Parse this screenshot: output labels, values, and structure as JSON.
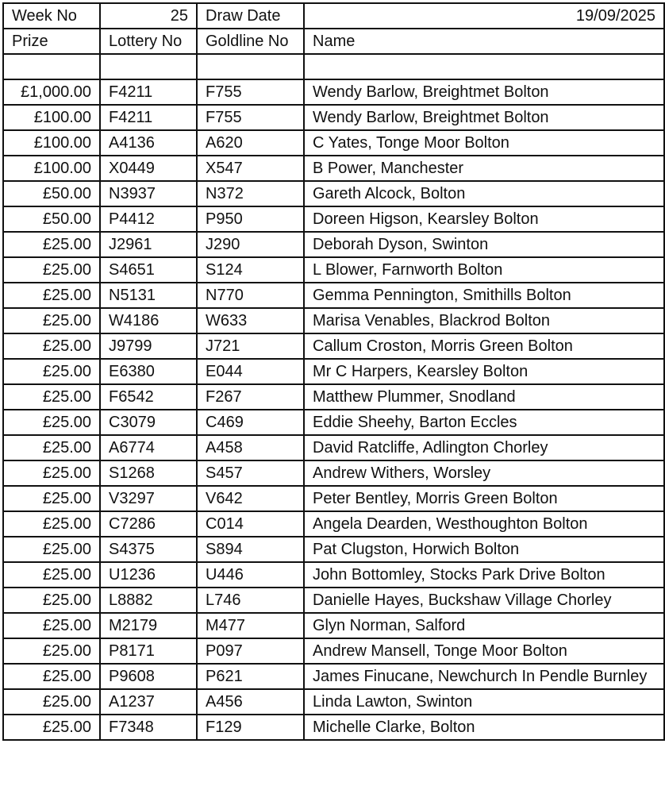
{
  "header": {
    "week_label": "Week No",
    "week_value": "25",
    "draw_date_label": "Draw Date",
    "draw_date_value": "19/09/2025"
  },
  "columns": {
    "prize": "Prize",
    "lottery_no": "Lottery No",
    "goldline_no": "Goldline No",
    "name": "Name"
  },
  "rows": [
    {
      "prize": "£1,000.00",
      "lottery": "F4211",
      "goldline": "F755",
      "name": "Wendy Barlow, Breightmet Bolton"
    },
    {
      "prize": "£100.00",
      "lottery": "F4211",
      "goldline": "F755",
      "name": "Wendy Barlow, Breightmet Bolton"
    },
    {
      "prize": "£100.00",
      "lottery": "A4136",
      "goldline": "A620",
      "name": "C Yates, Tonge Moor Bolton"
    },
    {
      "prize": "£100.00",
      "lottery": "X0449",
      "goldline": "X547",
      "name": "B Power, Manchester"
    },
    {
      "prize": "£50.00",
      "lottery": "N3937",
      "goldline": "N372",
      "name": "Gareth Alcock, Bolton"
    },
    {
      "prize": "£50.00",
      "lottery": "P4412",
      "goldline": "P950",
      "name": "Doreen Higson, Kearsley Bolton"
    },
    {
      "prize": "£25.00",
      "lottery": "J2961",
      "goldline": "J290",
      "name": "Deborah Dyson, Swinton"
    },
    {
      "prize": "£25.00",
      "lottery": "S4651",
      "goldline": "S124",
      "name": "L Blower, Farnworth Bolton"
    },
    {
      "prize": "£25.00",
      "lottery": "N5131",
      "goldline": "N770",
      "name": "Gemma Pennington, Smithills Bolton"
    },
    {
      "prize": "£25.00",
      "lottery": "W4186",
      "goldline": "W633",
      "name": "Marisa Venables, Blackrod Bolton"
    },
    {
      "prize": "£25.00",
      "lottery": "J9799",
      "goldline": "J721",
      "name": "Callum Croston, Morris Green Bolton"
    },
    {
      "prize": "£25.00",
      "lottery": "E6380",
      "goldline": "E044",
      "name": "Mr C Harpers, Kearsley Bolton"
    },
    {
      "prize": "£25.00",
      "lottery": "F6542",
      "goldline": "F267",
      "name": "Matthew Plummer, Snodland"
    },
    {
      "prize": "£25.00",
      "lottery": "C3079",
      "goldline": "C469",
      "name": "Eddie Sheehy, Barton Eccles"
    },
    {
      "prize": "£25.00",
      "lottery": "A6774",
      "goldline": "A458",
      "name": "David Ratcliffe, Adlington Chorley"
    },
    {
      "prize": "£25.00",
      "lottery": "S1268",
      "goldline": "S457",
      "name": "Andrew Withers, Worsley"
    },
    {
      "prize": "£25.00",
      "lottery": "V3297",
      "goldline": "V642",
      "name": "Peter Bentley, Morris Green Bolton"
    },
    {
      "prize": "£25.00",
      "lottery": "C7286",
      "goldline": "C014",
      "name": "Angela Dearden, Westhoughton Bolton"
    },
    {
      "prize": "£25.00",
      "lottery": "S4375",
      "goldline": "S894",
      "name": "Pat Clugston, Horwich Bolton"
    },
    {
      "prize": "£25.00",
      "lottery": "U1236",
      "goldline": "U446",
      "name": "John Bottomley, Stocks Park Drive Bolton"
    },
    {
      "prize": "£25.00",
      "lottery": "L8882",
      "goldline": "L746",
      "name": "Danielle Hayes, Buckshaw Village Chorley"
    },
    {
      "prize": "£25.00",
      "lottery": "M2179",
      "goldline": "M477",
      "name": "Glyn Norman, Salford"
    },
    {
      "prize": "£25.00",
      "lottery": "P8171",
      "goldline": "P097",
      "name": "Andrew Mansell, Tonge Moor Bolton"
    },
    {
      "prize": "£25.00",
      "lottery": "P9608",
      "goldline": "P621",
      "name": "James Finucane, Newchurch In Pendle Burnley"
    },
    {
      "prize": "£25.00",
      "lottery": "A1237",
      "goldline": "A456",
      "name": "Linda Lawton, Swinton"
    },
    {
      "prize": "£25.00",
      "lottery": "F7348",
      "goldline": "F129",
      "name": "Michelle Clarke, Bolton"
    }
  ]
}
